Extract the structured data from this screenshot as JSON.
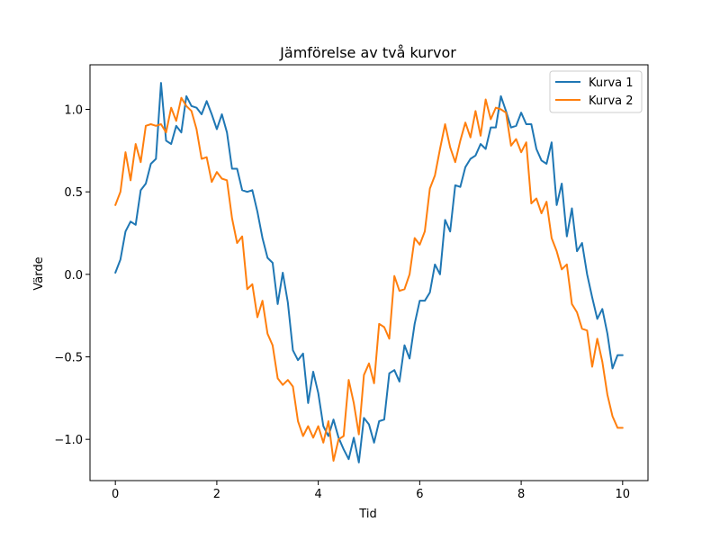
{
  "chart_data": {
    "type": "line",
    "title": "Jämförelse av två kurvor",
    "xlabel": "Tid",
    "ylabel": "Värde",
    "xlim": [
      -0.5,
      10.5
    ],
    "ylim": [
      -1.25,
      1.27
    ],
    "xticks": [
      0,
      2,
      4,
      6,
      8,
      10
    ],
    "xtick_labels": [
      "0",
      "2",
      "4",
      "6",
      "8",
      "10"
    ],
    "yticks": [
      -1.0,
      -0.5,
      0.0,
      0.5,
      1.0
    ],
    "ytick_labels": [
      "−1.0",
      "−0.5",
      "0.0",
      "0.5",
      "1.0"
    ],
    "grid": false,
    "legend_position": "top-right",
    "x": [
      0,
      0.1,
      0.2,
      0.3,
      0.4,
      0.5,
      0.6,
      0.7,
      0.8,
      0.9,
      1.0,
      1.1,
      1.2,
      1.3,
      1.4,
      1.5,
      1.6,
      1.7,
      1.8,
      1.9,
      2.0,
      2.1,
      2.2,
      2.3,
      2.4,
      2.5,
      2.6,
      2.7,
      2.8,
      2.9,
      3.0,
      3.1,
      3.2,
      3.3,
      3.4,
      3.5,
      3.6,
      3.7,
      3.8,
      3.9,
      4.0,
      4.1,
      4.2,
      4.3,
      4.4,
      4.5,
      4.6,
      4.7,
      4.8,
      4.9,
      5.0,
      5.1,
      5.2,
      5.3,
      5.4,
      5.5,
      5.6,
      5.7,
      5.8,
      5.9,
      6.0,
      6.1,
      6.2,
      6.3,
      6.4,
      6.5,
      6.6,
      6.7,
      6.8,
      6.9,
      7.0,
      7.1,
      7.2,
      7.3,
      7.4,
      7.5,
      7.6,
      7.7,
      7.8,
      7.9,
      8.0,
      8.1,
      8.2,
      8.3,
      8.4,
      8.5,
      8.6,
      8.7,
      8.8,
      8.9,
      9.0,
      9.1,
      9.2,
      9.3,
      9.4,
      9.5,
      9.6,
      9.7,
      9.8,
      9.9,
      10.0
    ],
    "series": [
      {
        "name": "Kurva 1",
        "color": "#1f77b4",
        "values": [
          0.01,
          0.09,
          0.26,
          0.32,
          0.3,
          0.51,
          0.55,
          0.67,
          0.7,
          1.16,
          0.81,
          0.79,
          0.9,
          0.86,
          1.08,
          1.02,
          1.01,
          0.97,
          1.05,
          0.97,
          0.88,
          0.97,
          0.86,
          0.64,
          0.64,
          0.51,
          0.5,
          0.51,
          0.38,
          0.22,
          0.1,
          0.07,
          -0.18,
          0.01,
          -0.17,
          -0.46,
          -0.52,
          -0.48,
          -0.78,
          -0.59,
          -0.72,
          -0.92,
          -0.98,
          -0.88,
          -0.99,
          -1.06,
          -1.12,
          -0.99,
          -1.14,
          -0.87,
          -0.91,
          -1.02,
          -0.89,
          -0.88,
          -0.6,
          -0.58,
          -0.65,
          -0.43,
          -0.51,
          -0.3,
          -0.16,
          -0.16,
          -0.11,
          0.06,
          0.0,
          0.33,
          0.26,
          0.54,
          0.53,
          0.65,
          0.7,
          0.72,
          0.79,
          0.76,
          0.89,
          0.89,
          1.08,
          0.99,
          0.89,
          0.9,
          0.98,
          0.91,
          0.91,
          0.76,
          0.69,
          0.67,
          0.8,
          0.42,
          0.55,
          0.23,
          0.4,
          0.14,
          0.19,
          0.0,
          -0.14,
          -0.27,
          -0.21,
          -0.36,
          -0.57,
          -0.49,
          -0.49
        ]
      },
      {
        "name": "Kurva 2",
        "color": "#ff7f0e",
        "values": [
          0.42,
          0.5,
          0.74,
          0.57,
          0.79,
          0.68,
          0.9,
          0.91,
          0.9,
          0.91,
          0.86,
          1.01,
          0.93,
          1.07,
          1.02,
          0.99,
          0.88,
          0.7,
          0.71,
          0.56,
          0.62,
          0.58,
          0.57,
          0.34,
          0.19,
          0.23,
          -0.09,
          -0.06,
          -0.26,
          -0.16,
          -0.36,
          -0.43,
          -0.63,
          -0.67,
          -0.64,
          -0.68,
          -0.89,
          -0.98,
          -0.92,
          -0.99,
          -0.92,
          -1.02,
          -0.89,
          -1.13,
          -1.0,
          -0.98,
          -0.64,
          -0.78,
          -0.97,
          -0.61,
          -0.54,
          -0.66,
          -0.3,
          -0.32,
          -0.39,
          -0.01,
          -0.1,
          -0.09,
          0.0,
          0.22,
          0.18,
          0.26,
          0.52,
          0.6,
          0.76,
          0.91,
          0.77,
          0.68,
          0.81,
          0.92,
          0.83,
          0.99,
          0.84,
          1.06,
          0.94,
          1.01,
          1.0,
          0.98,
          0.78,
          0.82,
          0.74,
          0.8,
          0.43,
          0.46,
          0.37,
          0.44,
          0.22,
          0.14,
          0.03,
          0.06,
          -0.18,
          -0.23,
          -0.33,
          -0.34,
          -0.56,
          -0.39,
          -0.53,
          -0.73,
          -0.86,
          -0.93,
          -0.93
        ]
      }
    ]
  }
}
